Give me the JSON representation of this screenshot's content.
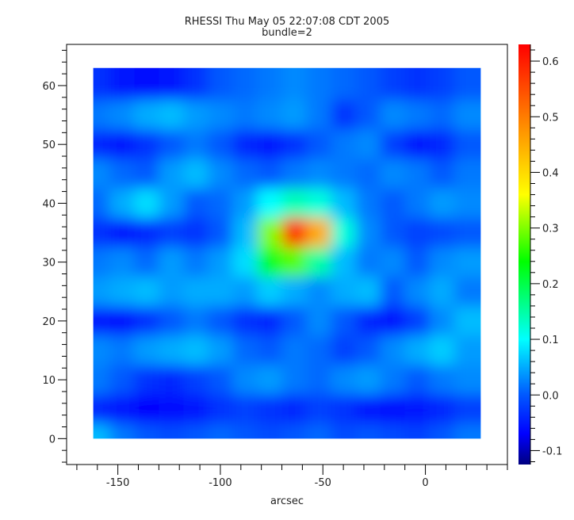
{
  "chart_data": {
    "type": "heatmap",
    "title": "RHESSI Thu May 05 22:07:08 CDT 2005",
    "subtitle": "bundle=2",
    "xlabel": "arcsec",
    "ylabel": "",
    "xlim": [
      -175,
      40
    ],
    "ylim": [
      -4.4,
      67
    ],
    "image_extent": {
      "x": [
        -162,
        27
      ],
      "y": [
        0,
        63
      ]
    },
    "x_ticks": [
      "-150",
      "-100",
      "-50",
      "0"
    ],
    "x_tick_values": [
      -150,
      -100,
      -50,
      0
    ],
    "y_ticks": [
      "0",
      "10",
      "20",
      "30",
      "40",
      "50",
      "60"
    ],
    "y_tick_values": [
      0,
      10,
      20,
      30,
      40,
      50,
      60
    ],
    "colorbar": {
      "range": [
        -0.125,
        0.63
      ],
      "ticks": [
        "-0.1",
        "0.0",
        "0.1",
        "0.2",
        "0.3",
        "0.4",
        "0.5",
        "0.6"
      ],
      "tick_values": [
        -0.1,
        0,
        0.1,
        0.2,
        0.3,
        0.4,
        0.5,
        0.6
      ],
      "colormap": [
        [
          -0.125,
          "#000080"
        ],
        [
          -0.07,
          "#0000ff"
        ],
        [
          0.0,
          "#0058ff"
        ],
        [
          0.1,
          "#00ffff"
        ],
        [
          0.24,
          "#00ff00"
        ],
        [
          0.36,
          "#ffff00"
        ],
        [
          0.47,
          "#ff9900"
        ],
        [
          0.63,
          "#ff0000"
        ]
      ]
    },
    "x": [
      -160,
      -148,
      -136,
      -124,
      -112,
      -100,
      -88,
      -76,
      -64,
      -52,
      -40,
      -28,
      -16,
      -4,
      8,
      20
    ],
    "y": [
      60,
      55,
      50,
      45,
      40,
      35,
      30,
      25,
      20,
      15,
      10,
      5,
      0
    ],
    "z": [
      [
        -0.03,
        -0.05,
        -0.06,
        -0.05,
        -0.03,
        0.0,
        0.01,
        0.02,
        0.03,
        0.02,
        0.01,
        0.0,
        -0.02,
        -0.03,
        -0.02,
        0.0
      ],
      [
        0.02,
        0.03,
        0.05,
        0.06,
        0.04,
        0.03,
        0.02,
        0.03,
        0.04,
        0.02,
        -0.03,
        0.0,
        0.03,
        0.02,
        0.01,
        0.03
      ],
      [
        -0.04,
        -0.05,
        -0.03,
        0.0,
        0.02,
        0.0,
        -0.04,
        -0.05,
        -0.03,
        0.0,
        0.02,
        0.03,
        -0.02,
        -0.05,
        -0.04,
        0.0
      ],
      [
        0.03,
        0.01,
        0.0,
        0.04,
        0.06,
        0.03,
        0.01,
        0.0,
        0.02,
        0.03,
        0.02,
        0.01,
        0.03,
        0.02,
        0.0,
        0.02
      ],
      [
        0.01,
        0.05,
        0.08,
        0.04,
        0.0,
        0.01,
        0.04,
        0.1,
        0.14,
        0.12,
        0.06,
        0.02,
        0.0,
        0.02,
        0.04,
        0.03
      ],
      [
        -0.03,
        -0.05,
        -0.04,
        -0.02,
        -0.03,
        0.0,
        0.06,
        0.3,
        0.58,
        0.45,
        0.12,
        0.03,
        0.0,
        -0.02,
        -0.01,
        0.0
      ],
      [
        0.02,
        0.03,
        0.01,
        0.04,
        0.02,
        0.04,
        0.08,
        0.22,
        0.28,
        0.15,
        0.06,
        0.02,
        0.03,
        0.0,
        0.03,
        0.04
      ],
      [
        0.04,
        0.05,
        0.06,
        0.04,
        0.05,
        0.05,
        0.04,
        0.07,
        0.05,
        0.03,
        0.05,
        0.06,
        0.0,
        0.03,
        0.05,
        0.02
      ],
      [
        -0.05,
        -0.06,
        -0.03,
        0.0,
        0.02,
        0.0,
        -0.03,
        -0.04,
        0.0,
        0.03,
        0.0,
        -0.04,
        -0.05,
        -0.02,
        0.03,
        0.06
      ],
      [
        0.03,
        0.02,
        0.04,
        0.05,
        0.06,
        0.04,
        0.01,
        0.0,
        0.02,
        0.01,
        -0.02,
        0.0,
        0.03,
        0.05,
        0.07,
        0.04
      ],
      [
        0.02,
        0.0,
        -0.03,
        -0.04,
        -0.02,
        0.0,
        0.03,
        0.04,
        0.02,
        0.01,
        0.03,
        0.04,
        0.02,
        0.0,
        0.02,
        0.03
      ],
      [
        -0.04,
        -0.05,
        -0.07,
        -0.06,
        -0.05,
        -0.03,
        -0.02,
        -0.03,
        -0.04,
        -0.02,
        -0.03,
        -0.05,
        -0.06,
        -0.05,
        -0.04,
        -0.02
      ],
      [
        0.06,
        0.02,
        0.0,
        -0.01,
        0.0,
        0.01,
        0.0,
        -0.01,
        0.0,
        0.01,
        -0.01,
        0.0,
        -0.01,
        -0.02,
        0.0,
        0.02
      ]
    ]
  }
}
